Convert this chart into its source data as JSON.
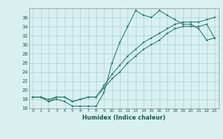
{
  "title": "",
  "xlabel": "Humidex (Indice chaleur)",
  "ylabel": "",
  "bg_color": "#d8f0f0",
  "line_color": "#2a7d6b",
  "xlim": [
    -0.5,
    23.5
  ],
  "ylim": [
    16,
    38
  ],
  "xticks": [
    0,
    1,
    2,
    3,
    4,
    5,
    6,
    7,
    8,
    9,
    10,
    11,
    12,
    13,
    14,
    15,
    16,
    17,
    18,
    19,
    20,
    21,
    22,
    23
  ],
  "yticks": [
    16,
    18,
    20,
    22,
    24,
    26,
    28,
    30,
    32,
    34,
    36
  ],
  "line1_x": [
    0,
    1,
    2,
    3,
    4,
    5,
    6,
    7,
    8,
    9,
    10,
    11,
    12,
    13,
    14,
    15,
    16,
    17,
    18,
    19,
    20,
    21,
    22,
    23
  ],
  "line1_y": [
    18.5,
    18.5,
    17.5,
    18.0,
    17.5,
    16.5,
    16.5,
    16.5,
    16.5,
    19.5,
    26.0,
    30.5,
    34.0,
    37.5,
    36.5,
    36.0,
    37.5,
    36.5,
    35.5,
    34.5,
    34.5,
    33.5,
    31.0,
    31.5
  ],
  "line2_x": [
    0,
    1,
    2,
    3,
    4,
    5,
    6,
    7,
    8,
    9,
    10,
    11,
    12,
    13,
    14,
    15,
    16,
    17,
    18,
    19,
    20,
    21,
    22,
    23
  ],
  "line2_y": [
    18.5,
    18.5,
    18.0,
    18.5,
    18.5,
    17.5,
    18.0,
    18.5,
    18.5,
    21.0,
    23.5,
    25.5,
    27.5,
    29.0,
    30.5,
    31.5,
    32.5,
    33.5,
    34.5,
    35.0,
    35.0,
    35.0,
    35.5,
    36.0
  ],
  "line3_x": [
    0,
    1,
    2,
    3,
    4,
    5,
    6,
    7,
    8,
    9,
    10,
    11,
    12,
    13,
    14,
    15,
    16,
    17,
    18,
    19,
    20,
    21,
    22,
    23
  ],
  "line3_y": [
    18.5,
    18.5,
    17.5,
    18.5,
    18.5,
    17.5,
    18.0,
    18.5,
    18.5,
    20.5,
    22.5,
    24.0,
    26.0,
    27.5,
    29.0,
    30.0,
    31.0,
    32.5,
    33.5,
    34.0,
    34.0,
    34.0,
    34.5,
    31.5
  ]
}
